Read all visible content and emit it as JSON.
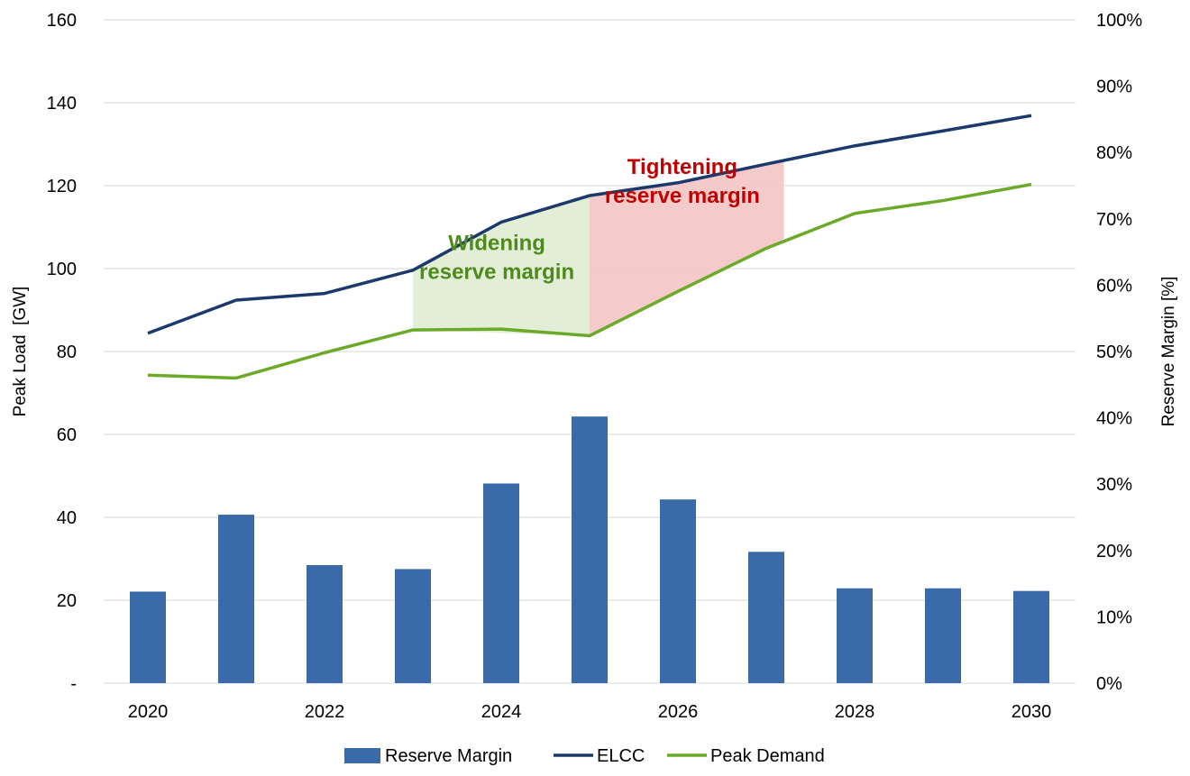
{
  "chart_data": {
    "type": "bar+line",
    "categories": [
      2020,
      2021,
      2022,
      2023,
      2024,
      2025,
      2026,
      2027,
      2028,
      2029,
      2030
    ],
    "x_tick_labels": [
      "2020",
      "",
      "2022",
      "",
      "2024",
      "",
      "2026",
      "",
      "2028",
      "",
      "2030"
    ],
    "series": [
      {
        "name": "Reserve Margin",
        "type": "bar",
        "axis": "right",
        "color": "#3a6ba8",
        "values": [
          0.138,
          0.254,
          0.178,
          0.172,
          0.301,
          0.402,
          0.277,
          0.198,
          0.143,
          0.143,
          0.139
        ]
      },
      {
        "name": "ELCC",
        "type": "line",
        "axis": "left",
        "color": "#1b3a6b",
        "values": [
          84.4,
          92.4,
          94.0,
          99.6,
          111.2,
          117.6,
          120.7,
          125.2,
          129.6,
          133.2,
          136.9
        ]
      },
      {
        "name": "Peak Demand",
        "type": "line",
        "axis": "left",
        "color": "#6aaa28",
        "values": [
          74.3,
          73.6,
          79.7,
          85.2,
          85.4,
          83.8,
          94.5,
          104.9,
          113.3,
          116.4,
          120.3
        ]
      }
    ],
    "y_left": {
      "label": "Peak Load  [GW]",
      "range": [
        0,
        160
      ],
      "ticks": [
        0,
        20,
        40,
        60,
        80,
        100,
        120,
        140,
        160
      ],
      "tick_labels": [
        "-",
        "20",
        "40",
        "60",
        "80",
        "100",
        "120",
        "140",
        "160"
      ]
    },
    "y_right": {
      "label": "Reserve Margin [%]",
      "range": [
        0,
        1
      ],
      "ticks": [
        0,
        0.1,
        0.2,
        0.3,
        0.4,
        0.5,
        0.6,
        0.7,
        0.8,
        0.9,
        1.0
      ],
      "tick_labels": [
        "0%",
        "10%",
        "20%",
        "30%",
        "40%",
        "50%",
        "60%",
        "70%",
        "80%",
        "90%",
        "100%"
      ]
    },
    "annotations": [
      {
        "lines": [
          "Widening",
          "reserve margin"
        ],
        "color": "#4e8a1e",
        "fill": "#e2edd5",
        "span": [
          2023,
          2025
        ]
      },
      {
        "lines": [
          "Tightening",
          "reserve margin"
        ],
        "color": "#c00000",
        "fill": "#f4c7c7",
        "span": [
          2025,
          2027.2
        ]
      }
    ],
    "grid": true,
    "legend_position": "bottom"
  }
}
